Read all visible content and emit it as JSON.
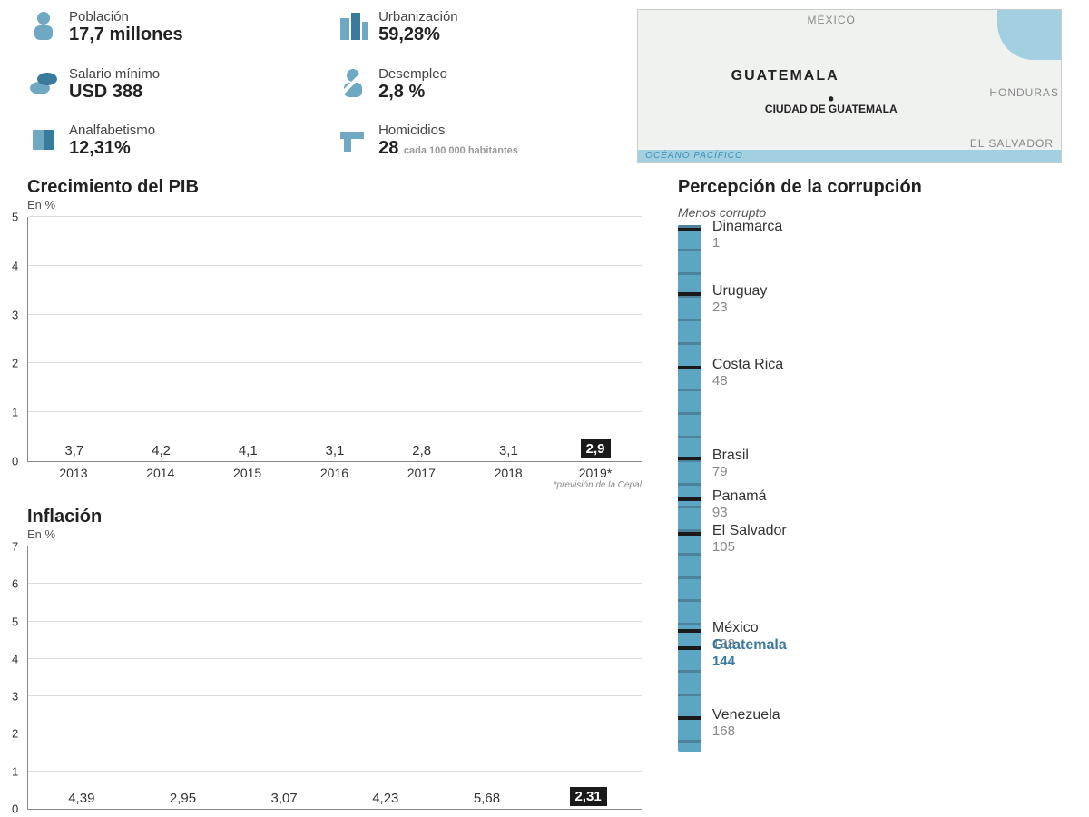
{
  "colors": {
    "bar_fill": "#93bdd0",
    "axis": "#888888",
    "grid": "#dddddd",
    "text": "#222222",
    "muted": "#888888",
    "highlight_bg": "#1a1a1a",
    "highlight_fg": "#ffffff",
    "accent": "#3a7a9c",
    "corr_bar": "#5ca6c4",
    "icon": "#6fa8c2",
    "icon_accent": "#3a7a9c",
    "map_land": "#f0f2f0",
    "map_water": "#a3d0e0"
  },
  "stats": [
    {
      "id": "population",
      "label": "Población",
      "value": "17,7 millones",
      "icon": "person"
    },
    {
      "id": "urban",
      "label": "Urbanización",
      "value": "59,28%",
      "icon": "buildings"
    },
    {
      "id": "minwage",
      "label": "Salario mínimo",
      "value": "USD 388",
      "icon": "coins"
    },
    {
      "id": "unemploy",
      "label": "Desempleo",
      "value": "2,8 %",
      "icon": "person-slash"
    },
    {
      "id": "illit",
      "label": "Analfabetismo",
      "value": "12,31%",
      "icon": "book"
    },
    {
      "id": "homicide",
      "label": "Homicidios",
      "value": "28",
      "sub": "cada 100 000 habitantes",
      "icon": "gun"
    }
  ],
  "map": {
    "country": "GUATEMALA",
    "capital": "CIUDAD DE GUATEMALA",
    "labels": {
      "mexico": "MÉXICO",
      "honduras": "HONDURAS",
      "elsalvador": "EL SALVADOR",
      "ocean": "OCÉANO PACÍFICO"
    }
  },
  "pib_chart": {
    "title": "Crecimiento del PIB",
    "sub": "En %",
    "type": "bar",
    "ylim": [
      0,
      5
    ],
    "ytick_step": 1,
    "categories": [
      "2013",
      "2014",
      "2015",
      "2016",
      "2017",
      "2018",
      "2019*"
    ],
    "values": [
      3.7,
      4.2,
      4.1,
      3.1,
      2.8,
      3.1,
      2.9
    ],
    "labels": [
      "3,7",
      "4,2",
      "4,1",
      "3,1",
      "2,8",
      "3,1",
      "2,9"
    ],
    "highlight_index": 6,
    "note": "*previsión de la Cepal",
    "bar_color": "#93bdd0"
  },
  "inflation_chart": {
    "title": "Inflación",
    "sub": "En %",
    "type": "bar",
    "ylim": [
      0,
      7
    ],
    "ytick_step": 1,
    "categories": [
      "2013",
      "2014",
      "2015",
      "2016",
      "2017",
      "2018"
    ],
    "values": [
      4.39,
      2.95,
      3.07,
      4.23,
      5.68,
      2.31
    ],
    "labels": [
      "4,39",
      "2,95",
      "3,07",
      "4,23",
      "5,68",
      "2,31"
    ],
    "highlight_index": 5,
    "bar_color": "#93bdd0"
  },
  "corruption": {
    "title": "Percepción de la corrupción",
    "sub": "Menos corrupto",
    "max_rank": 180,
    "bar_color": "#5ca6c4",
    "items": [
      {
        "name": "Dinamarca",
        "rank": 1
      },
      {
        "name": "Uruguay",
        "rank": 23
      },
      {
        "name": "Costa Rica",
        "rank": 48
      },
      {
        "name": "Brasil",
        "rank": 79
      },
      {
        "name": "Panamá",
        "rank": 93
      },
      {
        "name": "El Salvador",
        "rank": 105
      },
      {
        "name": "México",
        "rank": 138
      },
      {
        "name": "Guatemala",
        "rank": 144,
        "highlight": true
      },
      {
        "name": "Venezuela",
        "rank": 168
      }
    ]
  }
}
